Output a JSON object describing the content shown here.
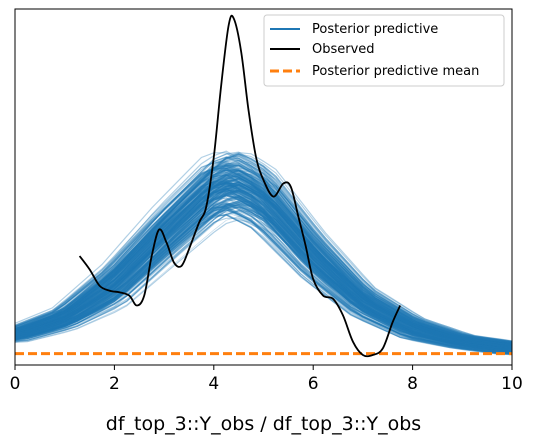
{
  "chart_data": {
    "type": "line",
    "xlabel": "df_top_3::Y_obs / df_top_3::Y_obs",
    "ylabel": "",
    "xlim": [
      0,
      10
    ],
    "ylim": [
      0,
      1
    ],
    "x_ticks": [
      0,
      2,
      4,
      6,
      8,
      10
    ],
    "x_tick_labels": [
      "0",
      "2",
      "4",
      "6",
      "8",
      "10"
    ],
    "y_ticks_visible": false,
    "grid": false,
    "legend_position": "top-right",
    "series": [
      {
        "name": "Posterior predictive",
        "color": "#1f77b4",
        "style": "many thin translucent curves forming a dense band",
        "band_center": [
          [
            0,
            0.06
          ],
          [
            1,
            0.11
          ],
          [
            2,
            0.21
          ],
          [
            3,
            0.36
          ],
          [
            4,
            0.5
          ],
          [
            4.4,
            0.52
          ],
          [
            5,
            0.47
          ],
          [
            6,
            0.3
          ],
          [
            7,
            0.16
          ],
          [
            8,
            0.08
          ],
          [
            9,
            0.04
          ],
          [
            10,
            0.02
          ]
        ],
        "band_halfwidth": [
          [
            0,
            0.02
          ],
          [
            1,
            0.03
          ],
          [
            2,
            0.06
          ],
          [
            3,
            0.07
          ],
          [
            4,
            0.07
          ],
          [
            5,
            0.07
          ],
          [
            6,
            0.06
          ],
          [
            7,
            0.04
          ],
          [
            8,
            0.03
          ],
          [
            9,
            0.02
          ],
          [
            10,
            0.02
          ]
        ]
      },
      {
        "name": "Observed",
        "color": "#000000",
        "points": [
          [
            1.3,
            0.3
          ],
          [
            1.5,
            0.26
          ],
          [
            1.7,
            0.21
          ],
          [
            1.9,
            0.195
          ],
          [
            2.1,
            0.19
          ],
          [
            2.3,
            0.18
          ],
          [
            2.45,
            0.15
          ],
          [
            2.6,
            0.18
          ],
          [
            2.75,
            0.3
          ],
          [
            2.9,
            0.38
          ],
          [
            3.05,
            0.34
          ],
          [
            3.2,
            0.28
          ],
          [
            3.35,
            0.27
          ],
          [
            3.5,
            0.32
          ],
          [
            3.7,
            0.4
          ],
          [
            3.85,
            0.45
          ],
          [
            4.0,
            0.6
          ],
          [
            4.15,
            0.82
          ],
          [
            4.3,
            1.0
          ],
          [
            4.4,
            1.02
          ],
          [
            4.55,
            0.92
          ],
          [
            4.7,
            0.74
          ],
          [
            4.85,
            0.6
          ],
          [
            5.0,
            0.53
          ],
          [
            5.2,
            0.48
          ],
          [
            5.4,
            0.52
          ],
          [
            5.55,
            0.51
          ],
          [
            5.7,
            0.42
          ],
          [
            5.85,
            0.33
          ],
          [
            6.0,
            0.23
          ],
          [
            6.2,
            0.18
          ],
          [
            6.4,
            0.17
          ],
          [
            6.6,
            0.12
          ],
          [
            6.8,
            0.04
          ],
          [
            7.0,
            0.0
          ],
          [
            7.2,
            0.0
          ],
          [
            7.4,
            0.02
          ],
          [
            7.6,
            0.1
          ],
          [
            7.75,
            0.15
          ]
        ]
      },
      {
        "name": "Posterior predictive mean",
        "color": "#ff7f0e",
        "style": "dashed",
        "points": [
          [
            0,
            0.004
          ],
          [
            10,
            0.004
          ]
        ]
      }
    ]
  }
}
